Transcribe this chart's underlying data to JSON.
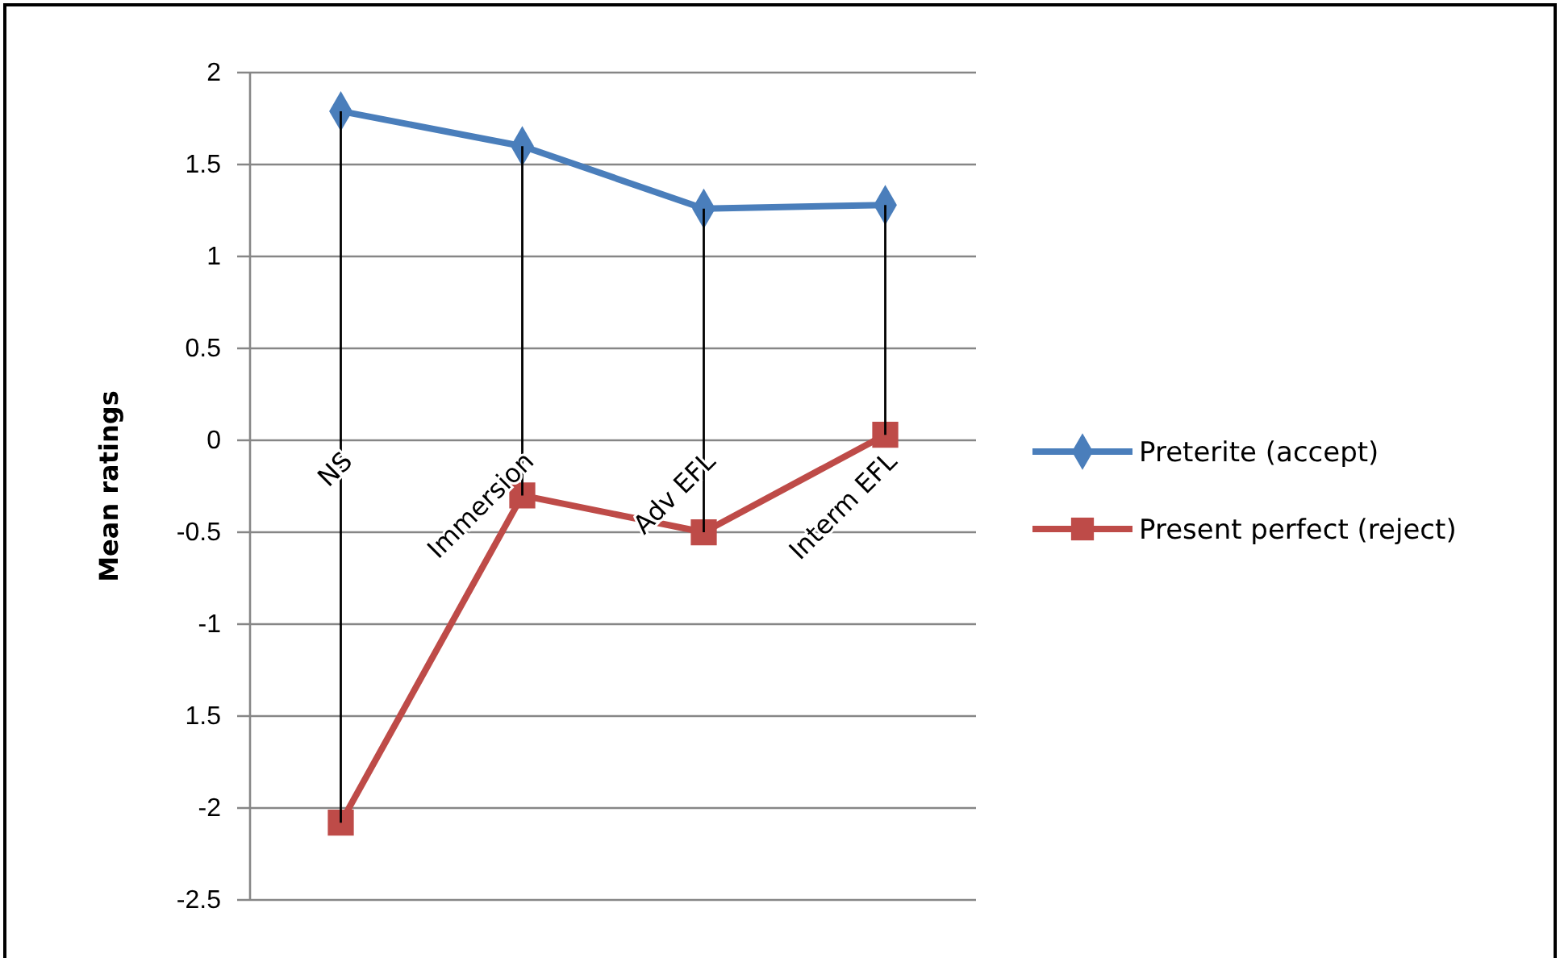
{
  "chart_data": {
    "type": "line",
    "ylabel": "Mean ratings",
    "categories": [
      "NS",
      "Immersion",
      "Adv EFL",
      "Interm EFL"
    ],
    "series": [
      {
        "name": "Preterite (accept)",
        "color": "#4a7ebb",
        "marker": "diamond",
        "values": [
          1.79,
          1.6,
          1.26,
          1.28
        ],
        "errors": [
          [
            -2.08,
            1.79
          ],
          [
            -0.3,
            1.6
          ],
          [
            -0.5,
            1.26
          ],
          [
            0.03,
            1.28
          ]
        ]
      },
      {
        "name": "Present perfect (reject)",
        "color": "#be4b48",
        "marker": "square",
        "values": [
          -2.08,
          -0.3,
          -0.5,
          0.03
        ]
      }
    ],
    "ylim": [
      -2.5,
      2
    ],
    "yticks": [
      2,
      1.5,
      1,
      0.5,
      0,
      -0.5,
      -1,
      {
        "value": -1.5,
        "label": "1.5"
      },
      -2,
      -2.5
    ],
    "grid": "y",
    "legend": "right",
    "line_style": "solid"
  }
}
